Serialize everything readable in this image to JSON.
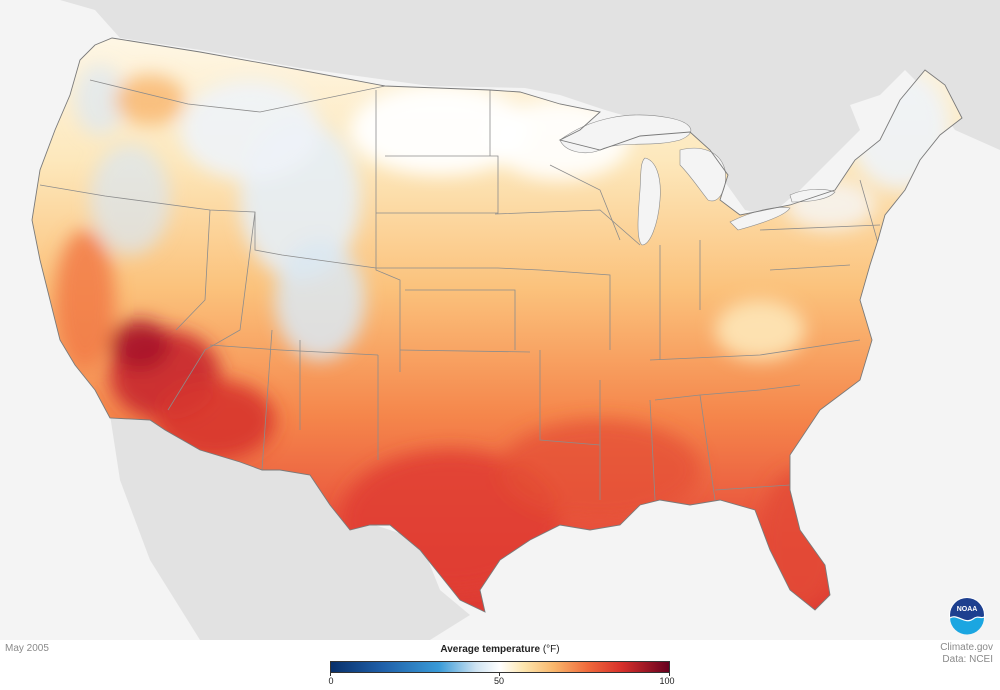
{
  "map": {
    "period_label": "May 2005",
    "credit_site": "Climate.gov",
    "credit_data": "Data: NCEI",
    "logo_text": "NOAA"
  },
  "legend": {
    "title": "Average temperature",
    "unit": "(°F)",
    "min": 0,
    "max": 100,
    "ticks": [
      "0",
      "50",
      "100"
    ],
    "gradient_stops": [
      {
        "value": 0,
        "color": "#08306b"
      },
      {
        "value": 15,
        "color": "#1f5fa8"
      },
      {
        "value": 32,
        "color": "#3a9bd8"
      },
      {
        "value": 43,
        "color": "#cfe4f2"
      },
      {
        "value": 50,
        "color": "#ffffff"
      },
      {
        "value": 57,
        "color": "#fde6ae"
      },
      {
        "value": 66,
        "color": "#f9b66b"
      },
      {
        "value": 76,
        "color": "#f06a3c"
      },
      {
        "value": 86,
        "color": "#d7302b"
      },
      {
        "value": 100,
        "color": "#67001f"
      }
    ]
  },
  "colors": {
    "ocean": "#f4f4f4",
    "land_outside": "#e2e2e2",
    "state_border": "#8c8c8c",
    "lake": "#f4f4f4"
  }
}
